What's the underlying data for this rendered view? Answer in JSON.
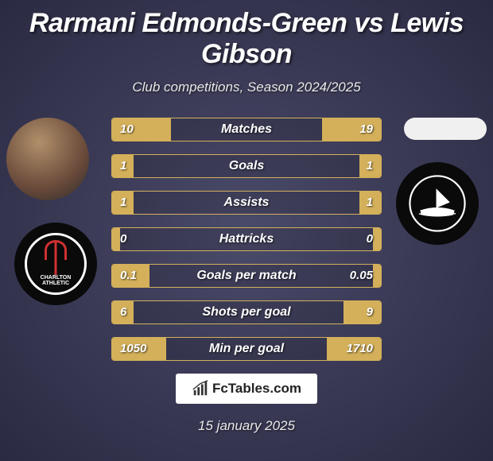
{
  "title": {
    "player_a": "Rarmani Edmonds-Green",
    "vs": "vs",
    "player_b": "Lewis Gibson"
  },
  "subtitle": "Club competitions, Season 2024/2025",
  "colors": {
    "accent": "#d4b05a",
    "bg_inner": "#4a4a6a",
    "bg_outer": "#2a2a42",
    "text": "#ffffff"
  },
  "club_a": {
    "name": "Charlton Athletic",
    "name_line1": "CHARLTON",
    "name_line2": "ATHLETIC",
    "badge_bg": "#0a0a0a",
    "badge_accent": "#d03030"
  },
  "club_b": {
    "name": "Plymouth",
    "badge_bg": "#0a0a0a"
  },
  "stats": [
    {
      "label": "Matches",
      "a": "10",
      "b": "19",
      "fill_a_pct": 22,
      "fill_b_pct": 22
    },
    {
      "label": "Goals",
      "a": "1",
      "b": "1",
      "fill_a_pct": 8,
      "fill_b_pct": 8
    },
    {
      "label": "Assists",
      "a": "1",
      "b": "1",
      "fill_a_pct": 8,
      "fill_b_pct": 8
    },
    {
      "label": "Hattricks",
      "a": "0",
      "b": "0",
      "fill_a_pct": 3,
      "fill_b_pct": 3
    },
    {
      "label": "Goals per match",
      "a": "0.1",
      "b": "0.05",
      "fill_a_pct": 14,
      "fill_b_pct": 3
    },
    {
      "label": "Shots per goal",
      "a": "6",
      "b": "9",
      "fill_a_pct": 8,
      "fill_b_pct": 14
    },
    {
      "label": "Min per goal",
      "a": "1050",
      "b": "1710",
      "fill_a_pct": 20,
      "fill_b_pct": 20
    }
  ],
  "branding": "FcTables.com",
  "date": "15 january 2025"
}
